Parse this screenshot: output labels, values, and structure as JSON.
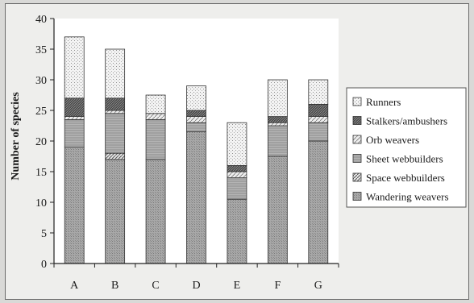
{
  "chart_data": {
    "type": "bar",
    "stacked": true,
    "title": "",
    "xlabel": "",
    "ylabel": "Number of species",
    "ylim": [
      0,
      40
    ],
    "yticks": [
      0,
      5,
      10,
      15,
      20,
      25,
      30,
      35,
      40
    ],
    "grid": false,
    "legend_position": "right",
    "categories": [
      "A",
      "B",
      "C",
      "D",
      "E",
      "F",
      "G"
    ],
    "series": [
      {
        "name": "Wandering weavers",
        "pattern": "fine-gray",
        "color": "#9a9a9a",
        "values": [
          19,
          17,
          17,
          21.5,
          10.5,
          17.5,
          20
        ]
      },
      {
        "name": "Space webbuilders",
        "pattern": "diagonal",
        "color": "#cfcfcf",
        "values": [
          0,
          1,
          0,
          0,
          0,
          0,
          0
        ]
      },
      {
        "name": "Sheet webbuilders",
        "pattern": "horizontal-gray",
        "color": "#a6a6a6",
        "values": [
          4.5,
          6.5,
          6.5,
          1.5,
          3.5,
          5,
          3
        ]
      },
      {
        "name": "Orb weavers",
        "pattern": "hatched-light",
        "color": "#d9d9d9",
        "values": [
          0.5,
          0.5,
          1,
          1,
          1,
          0.5,
          1
        ]
      },
      {
        "name": "Stalkers/ambushers",
        "pattern": "dark-hatch",
        "color": "#595959",
        "values": [
          3,
          2,
          0,
          1,
          1,
          1,
          2
        ]
      },
      {
        "name": "Runners",
        "pattern": "dotted",
        "color": "#f4f4f4",
        "values": [
          10,
          8,
          3,
          4,
          7,
          6,
          4
        ]
      }
    ]
  }
}
